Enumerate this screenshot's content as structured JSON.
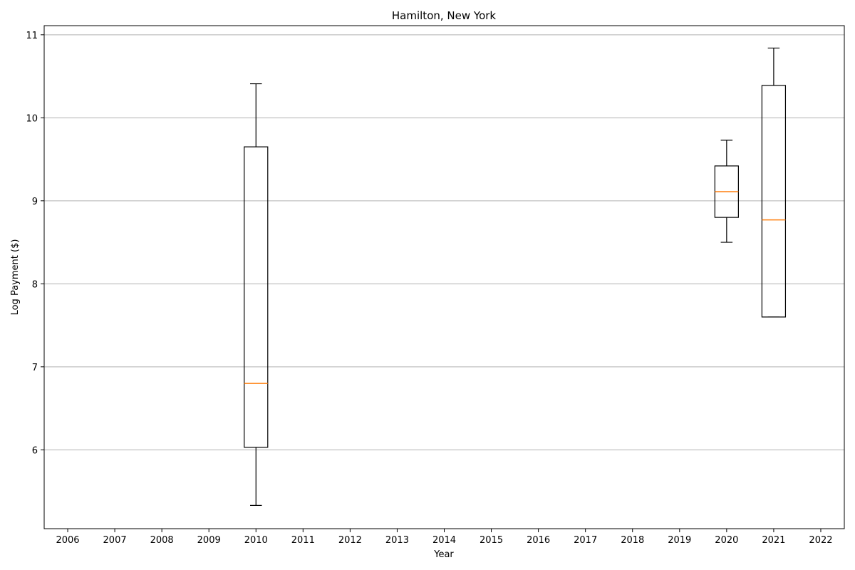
{
  "chart_data": {
    "type": "box",
    "title": "Hamilton, New York",
    "xlabel": "Year",
    "ylabel": "Log Payment ($)",
    "categories": [
      "2006",
      "2007",
      "2008",
      "2009",
      "2010",
      "2011",
      "2012",
      "2013",
      "2014",
      "2015",
      "2016",
      "2017",
      "2018",
      "2019",
      "2020",
      "2021",
      "2022"
    ],
    "ylim": [
      5.05,
      11.11
    ],
    "yticks": [
      6,
      7,
      8,
      9,
      10,
      11
    ],
    "grid": {
      "y": true,
      "x": false
    },
    "colors": {
      "box": "#000000",
      "median": "#ff7f0e",
      "grid": "#b0b0b0"
    },
    "boxes": [
      {
        "x": "2010",
        "whisker_low": 5.33,
        "q1": 6.03,
        "median": 6.8,
        "q3": 9.65,
        "whisker_high": 10.41
      },
      {
        "x": "2020",
        "whisker_low": 8.5,
        "q1": 8.8,
        "median": 9.11,
        "q3": 9.42,
        "whisker_high": 9.73
      },
      {
        "x": "2021",
        "whisker_low": 7.6,
        "q1": 7.6,
        "median": 8.77,
        "q3": 10.39,
        "whisker_high": 10.84
      }
    ]
  }
}
